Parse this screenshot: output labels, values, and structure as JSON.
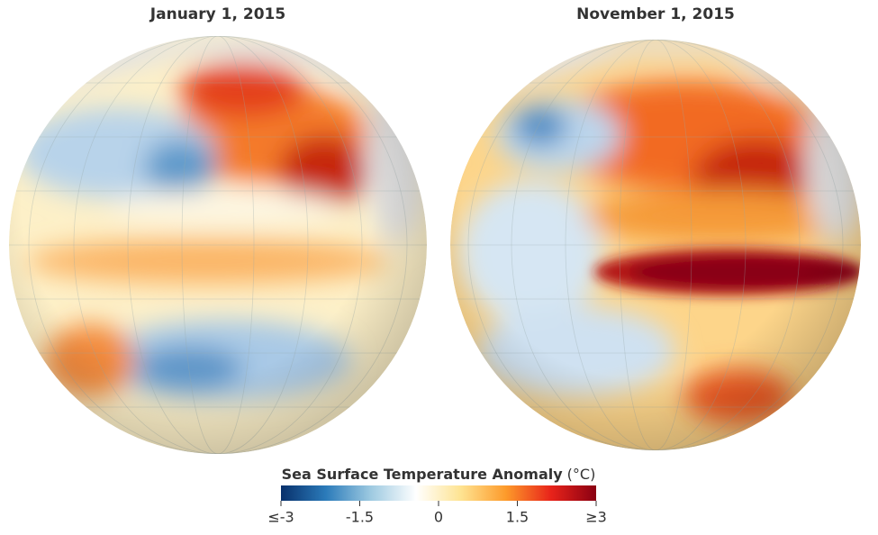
{
  "panels": [
    {
      "title": "January 1, 2015"
    },
    {
      "title": "November 1, 2015"
    }
  ],
  "colorbar": {
    "title": "Sea Surface Temperature Anomaly",
    "unit": "(°C)",
    "lim": [
      -3,
      3
    ],
    "ticks": [
      {
        "value": -3,
        "label": "≤-3"
      },
      -1.5,
      0,
      1.5,
      {
        "value": 3,
        "label": "≥3"
      }
    ],
    "colors": [
      "#08306b",
      "#2b7bba",
      "#9ecae1",
      "#ffffff",
      "#fee391",
      "#fd9a2a",
      "#e8231a",
      "#8a0012"
    ]
  }
}
